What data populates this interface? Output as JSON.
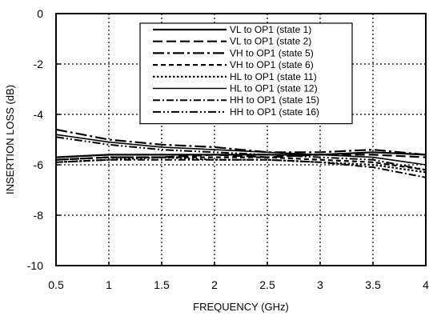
{
  "chart_data": {
    "type": "line",
    "xlabel": "FREQUENCY (GHz)",
    "ylabel": "INSERTION LOSS  (dB)",
    "xlim": [
      0.5,
      4
    ],
    "ylim": [
      -10,
      0
    ],
    "xticks": [
      "0.5",
      "1",
      "1.5",
      "2",
      "2.5",
      "3",
      "3.5",
      "4"
    ],
    "yticks": [
      "0",
      "-2",
      "-4",
      "-6",
      "-8",
      "-10"
    ],
    "grid": "dotted",
    "legend_position": "top-right",
    "x": [
      0.5,
      1.0,
      1.5,
      2.0,
      2.5,
      3.0,
      3.5,
      4.0
    ],
    "series": [
      {
        "name": "VL to OP1 (state 1)",
        "values": [
          -5.7,
          -5.6,
          -5.6,
          -5.6,
          -5.6,
          -5.6,
          -5.5,
          -5.6
        ]
      },
      {
        "name": "VL to OP1 (state 2)",
        "values": [
          -5.8,
          -5.7,
          -5.7,
          -5.6,
          -5.7,
          -5.6,
          -5.6,
          -5.7
        ]
      },
      {
        "name": "VH to OP1 (state 5)",
        "values": [
          -4.6,
          -5.0,
          -5.2,
          -5.3,
          -5.5,
          -5.5,
          -5.4,
          -5.6
        ]
      },
      {
        "name": "VH to OP1 (state 6)",
        "values": [
          -5.8,
          -5.7,
          -5.7,
          -5.7,
          -5.7,
          -5.8,
          -5.9,
          -6.2
        ]
      },
      {
        "name": "HL to OP1 (state 11)",
        "values": [
          -5.9,
          -5.8,
          -5.7,
          -5.8,
          -5.8,
          -5.9,
          -6.0,
          -6.3
        ]
      },
      {
        "name": "HL to OP1 (state 12)",
        "values": [
          -4.8,
          -5.1,
          -5.3,
          -5.4,
          -5.5,
          -5.6,
          -5.7,
          -6.0
        ]
      },
      {
        "name": "HH to OP1 (state 15)",
        "values": [
          -5.9,
          -5.8,
          -5.8,
          -5.8,
          -5.8,
          -5.9,
          -6.1,
          -6.5
        ]
      },
      {
        "name": "HH to OP1 (state 16)",
        "values": [
          -4.9,
          -5.2,
          -5.4,
          -5.5,
          -5.6,
          -5.7,
          -5.8,
          -6.2
        ]
      }
    ],
    "styles": [
      "solid",
      "longdash",
      "dashdot-long",
      "dashed",
      "dotted",
      "solid-thin",
      "dashdot",
      "dashdotdot"
    ]
  }
}
